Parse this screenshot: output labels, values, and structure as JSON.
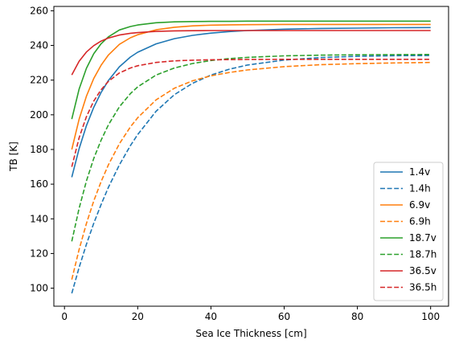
{
  "chart_data": {
    "type": "line",
    "title": "",
    "xlabel": "Sea Ice Thickness [cm]",
    "ylabel": "TB [K]",
    "xlim": [
      -2.9,
      104.9
    ],
    "ylim": [
      89.6,
      262.5
    ],
    "xticks": [
      0,
      20,
      40,
      60,
      80,
      100
    ],
    "yticks": [
      100,
      120,
      140,
      160,
      180,
      200,
      220,
      240,
      260
    ],
    "grid": false,
    "legend_position": "lower right",
    "x_sample_points": [
      2,
      4,
      6,
      8,
      10,
      12,
      15,
      18,
      20,
      25,
      30,
      35,
      40,
      45,
      50,
      60,
      70,
      80,
      90,
      100
    ],
    "series": [
      {
        "name": "1.4v",
        "color": "#1f77b4",
        "style": "solid",
        "values": [
          164,
          180.4,
          193.7,
          204.3,
          212.9,
          219.8,
          227.7,
          233.3,
          236.1,
          240.9,
          243.9,
          245.8,
          247.1,
          248.0,
          248.6,
          249.4,
          249.8,
          250.0,
          250.2,
          250.3
        ]
      },
      {
        "name": "1.4h",
        "color": "#1f77b4",
        "style": "dashed",
        "values": [
          97,
          111.9,
          125.3,
          137.4,
          148.3,
          158.2,
          171.1,
          182.2,
          188.6,
          202.0,
          211.6,
          218.2,
          222.9,
          226.3,
          228.7,
          231.6,
          233.0,
          233.7,
          234.1,
          234.2
        ]
      },
      {
        "name": "6.9v",
        "color": "#ff7f0e",
        "style": "solid",
        "values": [
          180,
          197.4,
          210.7,
          220.9,
          228.6,
          234.5,
          240.6,
          244.4,
          246.2,
          249.0,
          250.5,
          251.3,
          251.7,
          251.9,
          252.0,
          252.1,
          252.1,
          252.1,
          252.1,
          252.1
        ]
      },
      {
        "name": "6.9h",
        "color": "#ff7f0e",
        "style": "dashed",
        "values": [
          105,
          122.3,
          137.3,
          150.3,
          161.5,
          171.2,
          183.3,
          193.0,
          198.3,
          208.6,
          215.3,
          219.6,
          222.5,
          224.4,
          225.9,
          227.8,
          228.9,
          229.5,
          229.9,
          230.2
        ]
      },
      {
        "name": "18.7v",
        "color": "#2ca02c",
        "style": "solid",
        "values": [
          197.5,
          214.8,
          226.8,
          235.2,
          241.0,
          245.0,
          248.9,
          250.9,
          251.8,
          253.1,
          253.6,
          253.8,
          253.9,
          253.9,
          254.0,
          254.0,
          254.0,
          254.0,
          254.0,
          254.0
        ]
      },
      {
        "name": "18.7h",
        "color": "#2ca02c",
        "style": "dashed",
        "values": [
          127,
          146.0,
          161.8,
          174.8,
          185.4,
          194.2,
          204.6,
          212.2,
          216.1,
          222.9,
          227.0,
          229.6,
          231.3,
          232.4,
          233.1,
          234.0,
          234.4,
          234.6,
          234.7,
          234.8
        ]
      },
      {
        "name": "36.5v",
        "color": "#d62728",
        "style": "solid",
        "values": [
          223,
          230.9,
          236.2,
          239.9,
          242.5,
          244.3,
          246.0,
          247.0,
          247.4,
          248.1,
          248.4,
          248.5,
          248.6,
          248.6,
          248.6,
          248.6,
          248.6,
          248.6,
          248.6,
          248.6
        ]
      },
      {
        "name": "36.5h",
        "color": "#d62728",
        "style": "dashed",
        "values": [
          170,
          186.7,
          198.9,
          207.9,
          214.5,
          219.3,
          224.1,
          227.0,
          228.3,
          230.2,
          231.1,
          231.5,
          231.7,
          231.8,
          231.9,
          232.0,
          232.0,
          232.0,
          232.0,
          232.0
        ]
      }
    ]
  }
}
